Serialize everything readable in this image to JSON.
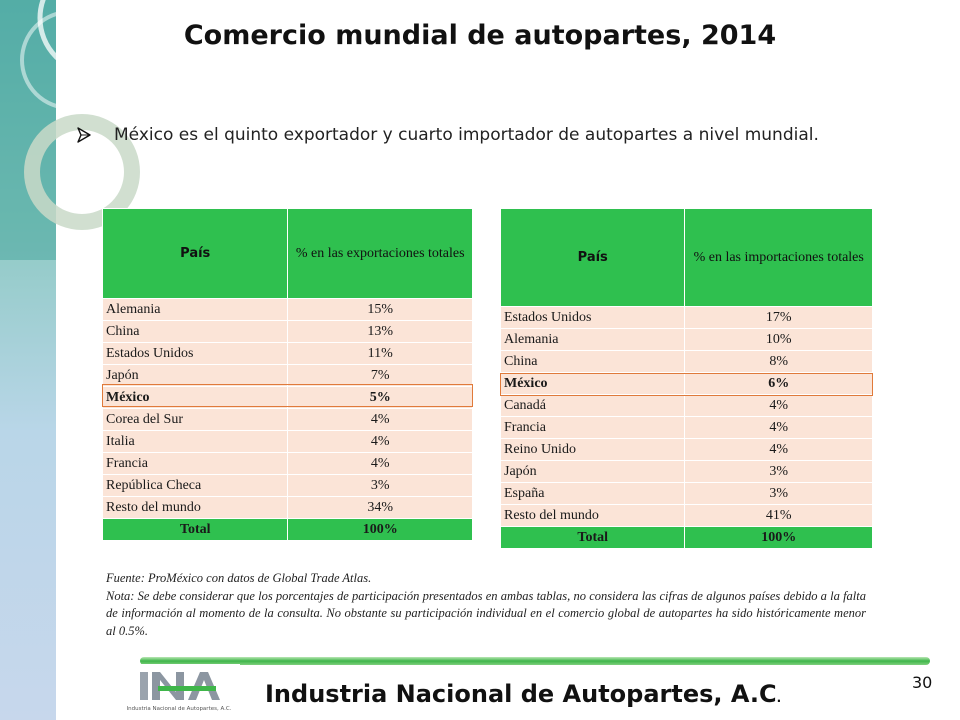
{
  "slide": {
    "title": "Comercio mundial de autopartes, 2014",
    "bullet": "México es el quinto exportador y cuarto importador de autopartes a nivel mundial."
  },
  "exports_table": {
    "header_country": "País",
    "header_pct": "% en las exportaciones totales",
    "rows": [
      {
        "country": "Alemania",
        "pct": "15%"
      },
      {
        "country": "China",
        "pct": "13%"
      },
      {
        "country": "Estados Unidos",
        "pct": "11%"
      },
      {
        "country": "Japón",
        "pct": "7%"
      },
      {
        "country": "México",
        "pct": "5%"
      },
      {
        "country": "Corea del Sur",
        "pct": "4%"
      },
      {
        "country": "Italia",
        "pct": "4%"
      },
      {
        "country": "Francia",
        "pct": "4%"
      },
      {
        "country": "República Checa",
        "pct": "3%"
      },
      {
        "country": "Resto del mundo",
        "pct": "34%"
      }
    ],
    "total_label": "Total",
    "total_pct": "100%"
  },
  "imports_table": {
    "header_country": "País",
    "header_pct": "% en las importaciones totales",
    "rows": [
      {
        "country": "Estados Unidos",
        "pct": "17%"
      },
      {
        "country": "Alemania",
        "pct": "10%"
      },
      {
        "country": "China",
        "pct": "8%"
      },
      {
        "country": "México",
        "pct": "6%"
      },
      {
        "country": "Canadá",
        "pct": "4%"
      },
      {
        "country": "Francia",
        "pct": "4%"
      },
      {
        "country": "Reino Unido",
        "pct": "4%"
      },
      {
        "country": "Japón",
        "pct": "3%"
      },
      {
        "country": "España",
        "pct": "3%"
      },
      {
        "country": "Resto del mundo",
        "pct": "41%"
      }
    ],
    "total_label": "Total",
    "total_pct": "100%"
  },
  "notes": {
    "source": "Fuente: ProMéxico con datos de Global Trade Atlas.",
    "note": "Nota: Se debe considerar que los porcentajes de participación presentados en ambas tablas, no considera las cifras de algunos países debido a la falta de información al momento de la consulta. No obstante su participación individual en el comercio global de autopartes ha sido históricamente menor al 0.5%."
  },
  "footer": {
    "org_name": "Industria Nacional de  Autopartes, A.C",
    "org_period": ".",
    "logo_text": "Industria Nacional de Autopartes, A.C.",
    "page_number": "30"
  },
  "colors": {
    "header_green": "#2fc04f",
    "row_peach": "#fbe4d7",
    "highlight_orange": "#e07a3a",
    "divider_green": "#3fb64a"
  }
}
